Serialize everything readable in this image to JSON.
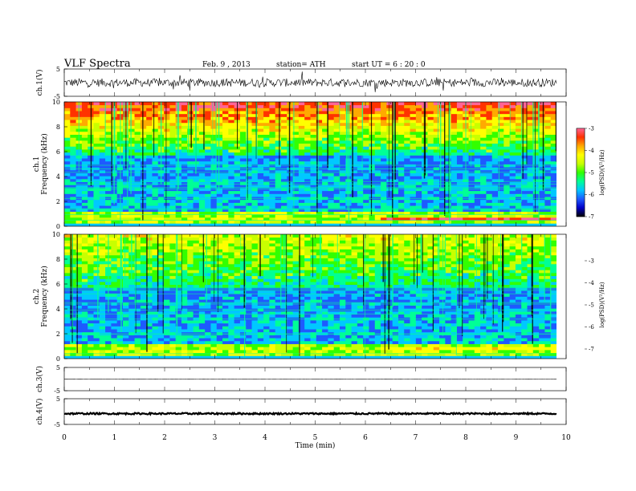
{
  "header": {
    "title": "VLF  Spectra",
    "date": "Feb. 9  , 2013",
    "station": "station= ATH",
    "start": "start  UT  =    6  : 20 : 0"
  },
  "colors": {
    "colormap": [
      "#000000",
      "#0000c8",
      "#1e5aff",
      "#00c8ff",
      "#00ff96",
      "#32ff00",
      "#c8ff00",
      "#ffff00",
      "#ffaa00",
      "#ff3200",
      "#ff6496",
      "#ffffff"
    ]
  },
  "chart_data": [
    {
      "type": "line",
      "panel": "ch1-waveform",
      "ylabel": "ch.1(V)",
      "ylim": [
        -5,
        5
      ],
      "yticks": [
        "5",
        "-5"
      ],
      "baseline": 0,
      "amplitude": 1.5,
      "xlim": [
        0,
        10
      ]
    },
    {
      "type": "heatmap",
      "panel": "ch1-spectrogram",
      "ylabel_channel": "ch.1",
      "ylabel": "Frequency  (kHz)",
      "ylim": [
        0,
        10
      ],
      "yticks": [
        "0",
        "2",
        "4",
        "6",
        "8",
        "10"
      ],
      "xlim": [
        0,
        9.8
      ],
      "colorbar": {
        "label": "log(PSD)(V²/Hz)",
        "range": [
          -7,
          -3
        ],
        "ticks": [
          "-7",
          "-6",
          "-5",
          "-4",
          "-3"
        ]
      }
    },
    {
      "type": "heatmap",
      "panel": "ch2-spectrogram",
      "ylabel_channel": "ch.2",
      "ylabel": "Frequency  (kHz)",
      "ylim": [
        0,
        10
      ],
      "yticks": [
        "0",
        "2",
        "4",
        "6",
        "8",
        "10"
      ],
      "xlim": [
        0,
        9.8
      ],
      "colorbar": {
        "label": "log(PSD)(V²/Hz)",
        "range": [
          -7,
          -3
        ],
        "ticks": [
          "-7",
          "-6",
          "-5",
          "-4",
          "-3"
        ]
      }
    },
    {
      "type": "line",
      "panel": "ch3-waveform",
      "ylabel": "ch.3(V)",
      "ylim": [
        -5,
        5
      ],
      "yticks": [
        "5",
        "-5"
      ],
      "baseline": 0,
      "amplitude": 0.05
    },
    {
      "type": "line",
      "panel": "ch4-waveform",
      "ylabel": "ch.4(V)",
      "ylim": [
        -5,
        5
      ],
      "yticks": [
        "5",
        "-5"
      ],
      "baseline": -0.8,
      "amplitude": 0.3,
      "xlabel": "Time  (min)",
      "xlim": [
        0,
        10
      ],
      "xticks": [
        "0",
        "1",
        "2",
        "3",
        "4",
        "5",
        "6",
        "7",
        "8",
        "9",
        "10"
      ]
    }
  ]
}
